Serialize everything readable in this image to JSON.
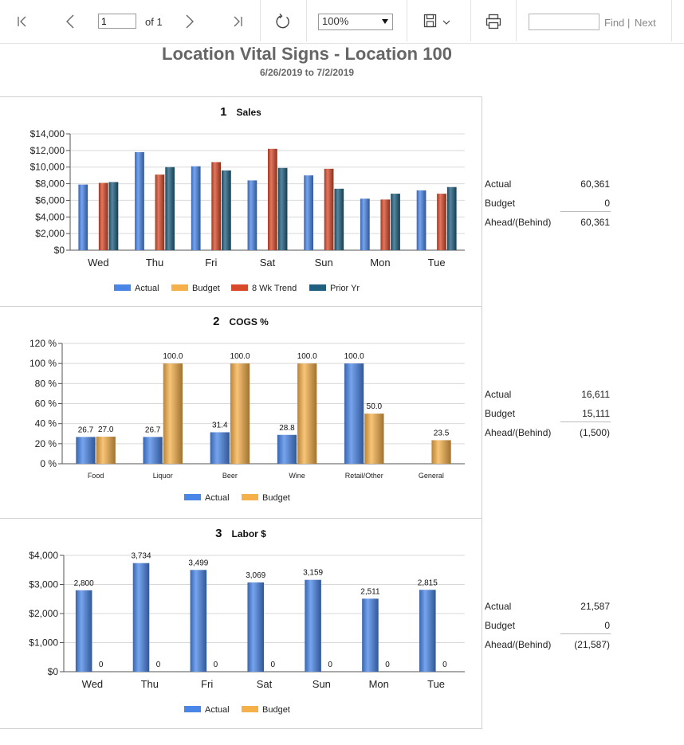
{
  "toolbar": {
    "page_value": "1",
    "page_of": "of 1",
    "zoom": "100%",
    "find_placeholder": "",
    "find_label": "Find",
    "divider": "|",
    "next_label": "Next",
    "icons": [
      "first-page-icon",
      "previous-page-icon",
      "next-page-icon",
      "last-page-icon",
      "refresh-icon",
      "save-icon",
      "chevron-down-icon",
      "print-icon"
    ]
  },
  "report": {
    "title": "Location Vital Signs - Location 100",
    "subtitle": "6/26/2019 to 7/2/2019"
  },
  "sections": [
    {
      "number": "1",
      "title": "Sales",
      "summary": {
        "actual_label": "Actual",
        "actual_value": "60,361",
        "budget_label": "Budget",
        "budget_value": "0",
        "ahead_label": "Ahead/(Behind)",
        "ahead_value": "60,361"
      }
    },
    {
      "number": "2",
      "title": "COGS %",
      "summary": {
        "actual_label": "Actual",
        "actual_value": "16,611",
        "budget_label": "Budget",
        "budget_value": "15,111",
        "ahead_label": "Ahead/(Behind)",
        "ahead_value": "(1,500)"
      }
    },
    {
      "number": "3",
      "title": "Labor $",
      "summary": {
        "actual_label": "Actual",
        "actual_value": "21,587",
        "budget_label": "Budget",
        "budget_value": "0",
        "ahead_label": "Ahead/(Behind)",
        "ahead_value": "(21,587)"
      }
    }
  ],
  "chart_data": [
    {
      "type": "bar",
      "title": "Sales",
      "categories": [
        "Wed",
        "Thu",
        "Fri",
        "Sat",
        "Sun",
        "Mon",
        "Tue"
      ],
      "ylim": [
        0,
        14000
      ],
      "yticks": [
        0,
        2000,
        4000,
        6000,
        8000,
        10000,
        12000,
        14000
      ],
      "ytick_labels": [
        "$0",
        "$2,000",
        "$4,000",
        "$6,000",
        "$8,000",
        "$10,000",
        "$12,000",
        "$14,000"
      ],
      "show_value_labels": false,
      "series": [
        {
          "name": "Actual",
          "color": "#4a86e8",
          "values": [
            7900,
            11800,
            10100,
            8400,
            9000,
            6200,
            7200
          ]
        },
        {
          "name": "Budget",
          "color": "#f6b04a",
          "values": [
            0,
            0,
            0,
            0,
            0,
            0,
            0
          ]
        },
        {
          "name": "8 Wk Trend",
          "color": "#d8492a",
          "values": [
            8100,
            9100,
            10600,
            12200,
            9800,
            6100,
            6800
          ]
        },
        {
          "name": "Prior Yr",
          "color": "#1f5f7f",
          "values": [
            8200,
            10000,
            9600,
            9900,
            7400,
            6800,
            7600
          ]
        }
      ]
    },
    {
      "type": "bar",
      "title": "COGS %",
      "categories": [
        "Food",
        "Liquor",
        "Beer",
        "Wine",
        "Retail/Other",
        "General"
      ],
      "ylim": [
        0,
        120
      ],
      "yticks": [
        0,
        20,
        40,
        60,
        80,
        100,
        120
      ],
      "ytick_labels": [
        "0 %",
        "20 %",
        "40 %",
        "60 %",
        "80 %",
        "100 %",
        "120 %"
      ],
      "show_value_labels": true,
      "value_format": "fixed1",
      "series": [
        {
          "name": "Actual",
          "color": "#4a86e8",
          "values": [
            26.7,
            26.7,
            31.4,
            28.8,
            100.0,
            null
          ]
        },
        {
          "name": "Budget",
          "color": "#f6b04a",
          "values": [
            27.0,
            100.0,
            100.0,
            100.0,
            50.0,
            23.5
          ]
        }
      ]
    },
    {
      "type": "bar",
      "title": "Labor $",
      "categories": [
        "Wed",
        "Thu",
        "Fri",
        "Sat",
        "Sun",
        "Mon",
        "Tue"
      ],
      "ylim": [
        0,
        4000
      ],
      "yticks": [
        0,
        1000,
        2000,
        3000,
        4000
      ],
      "ytick_labels": [
        "$0",
        "$1,000",
        "$2,000",
        "$3,000",
        "$4,000"
      ],
      "show_value_labels": true,
      "value_format": "comma",
      "series": [
        {
          "name": "Actual",
          "color": "#4a86e8",
          "values": [
            2800,
            3734,
            3499,
            3069,
            3159,
            2511,
            2815
          ]
        },
        {
          "name": "Budget",
          "color": "#f6b04a",
          "values": [
            0,
            0,
            0,
            0,
            0,
            0,
            0
          ]
        }
      ]
    }
  ]
}
